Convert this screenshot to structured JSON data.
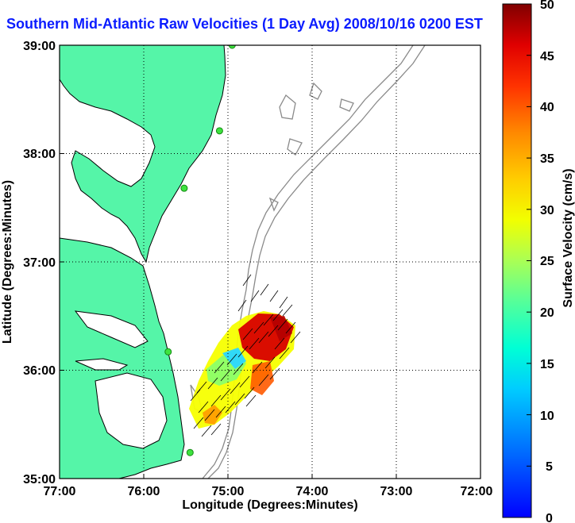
{
  "title": "Southern Mid-Atlantic Raw Velocities (1 Day Avg) 2008/10/16 0200 EST",
  "xlabel": "Longitude (Degrees:Minutes)",
  "ylabel": "Latitude (Degrees:Minutes)",
  "x_ticks": [
    "77:00",
    "76:00",
    "75:00",
    "74:00",
    "73:00",
    "72:00"
  ],
  "y_ticks": [
    "39:00",
    "38:00",
    "37:00",
    "36:00",
    "35:00"
  ],
  "colorbar": {
    "label": "Surface Velocity (cm/s)",
    "ticks": [
      "50",
      "45",
      "40",
      "35",
      "30",
      "25",
      "20",
      "15",
      "10",
      "5",
      "0"
    ],
    "min": 0,
    "max": 50,
    "colormap": "jet"
  },
  "colors": {
    "land": "#55f5a8",
    "coast_line": "#000000",
    "bathymetry": "#8a8a8a",
    "station": "#3ee23e",
    "title": "#0b1cff"
  },
  "chart_data": {
    "type": "map",
    "xlim": [
      -77,
      -72
    ],
    "ylim": [
      35,
      39
    ],
    "grid": "dotted",
    "stations": [
      {
        "lon": -74.95,
        "lat": 39.0
      },
      {
        "lon": -75.1,
        "lat": 38.21
      },
      {
        "lon": -75.52,
        "lat": 37.68
      },
      {
        "lon": -75.71,
        "lat": 36.17
      },
      {
        "lon": -75.45,
        "lat": 35.24
      }
    ]
  }
}
